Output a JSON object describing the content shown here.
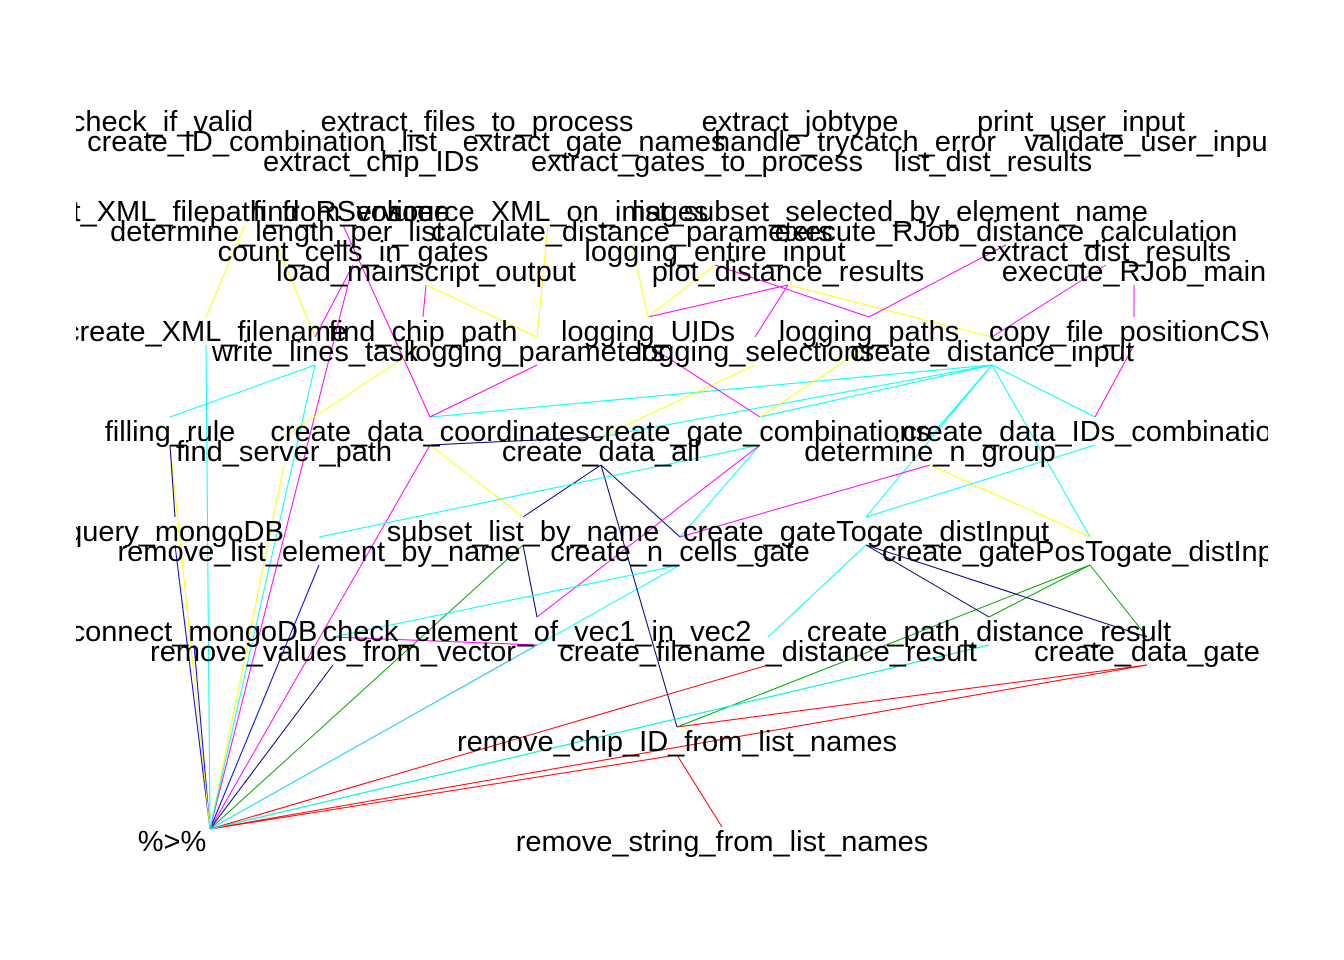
{
  "graph": {
    "nodes": [
      {
        "id": "check_if_valid",
        "label": "check_if_valid"
      },
      {
        "id": "extract_files_to_process",
        "label": "extract_files_to_process"
      },
      {
        "id": "extract_jobtype",
        "label": "extract_jobtype"
      },
      {
        "id": "print_user_input",
        "label": "print_user_input"
      },
      {
        "id": "create_ID_combination_list",
        "label": "create_ID_combination_list"
      },
      {
        "id": "extract_gate_names",
        "label": "extract_gate_names"
      },
      {
        "id": "handle_trycatch_error",
        "label": "handle_trycatch_error"
      },
      {
        "id": "validate_user_input",
        "label": "validate_user_input"
      },
      {
        "id": "extract_chip_IDs",
        "label": "extract_chip_IDs"
      },
      {
        "id": "extract_gates_to_process",
        "label": "extract_gates_to_process"
      },
      {
        "id": "list_dist_results",
        "label": "list_dist_results"
      },
      {
        "id": "get_XML_filepath_from_volume",
        "label": "get_XML_filepath_from_volume"
      },
      {
        "id": "find_RService",
        "label": "find_RService"
      },
      {
        "id": "source_XML_on_images",
        "label": "source_XML_on_images"
      },
      {
        "id": "list_subset_selected_by_element_name",
        "label": "list_subset_selected_by_element_name"
      },
      {
        "id": "determine_length_per_list",
        "label": "determine_length_per_list"
      },
      {
        "id": "calculate_distance_parameters",
        "label": "calculate_distance_parameters"
      },
      {
        "id": "execute_RJob_distance_calculation",
        "label": "execute_RJob_distance_calculation"
      },
      {
        "id": "count_cells_in_gates",
        "label": "count_cells_in_gates"
      },
      {
        "id": "logging_entire_input",
        "label": "logging_entire_input"
      },
      {
        "id": "extract_dist_results",
        "label": "extract_dist_results"
      },
      {
        "id": "load_mainscript_output",
        "label": "load_mainscript_output"
      },
      {
        "id": "plot_distance_results",
        "label": "plot_distance_results"
      },
      {
        "id": "execute_RJob_main",
        "label": "execute_RJob_main"
      },
      {
        "id": "create_XML_filename",
        "label": "create_XML_filename"
      },
      {
        "id": "find_chip_path",
        "label": "find_chip_path"
      },
      {
        "id": "logging_UIDs",
        "label": "logging_UIDs"
      },
      {
        "id": "logging_paths",
        "label": "logging_paths"
      },
      {
        "id": "copy_file_positionCSV",
        "label": "copy_file_positionCSV"
      },
      {
        "id": "write_lines_task",
        "label": "write_lines_task"
      },
      {
        "id": "logging_parameters",
        "label": "logging_parameters"
      },
      {
        "id": "logging_selections",
        "label": "logging_selections"
      },
      {
        "id": "create_distance_input",
        "label": "create_distance_input"
      },
      {
        "id": "filling_rule",
        "label": "filling_rule"
      },
      {
        "id": "create_data_coordinates",
        "label": "create_data_coordinates"
      },
      {
        "id": "create_gate_combinations",
        "label": "create_gate_combinations"
      },
      {
        "id": "create_data_IDs_combination",
        "label": "create_data_IDs_combination"
      },
      {
        "id": "find_server_path",
        "label": "find_server_path"
      },
      {
        "id": "create_data_all",
        "label": "create_data_all"
      },
      {
        "id": "determine_n_group",
        "label": "determine_n_group"
      },
      {
        "id": "query_mongoDB",
        "label": "query_mongoDB"
      },
      {
        "id": "subset_list_by_name",
        "label": "subset_list_by_name"
      },
      {
        "id": "create_gateTogate_distInput",
        "label": "create_gateTogate_distInput"
      },
      {
        "id": "remove_list_element_by_name",
        "label": "remove_list_element_by_name"
      },
      {
        "id": "create_n_cells_gate",
        "label": "create_n_cells_gate"
      },
      {
        "id": "create_gatePosTogate_distInput",
        "label": "create_gatePosTogate_distInput"
      },
      {
        "id": "connect_mongoDB",
        "label": "connect_mongoDB"
      },
      {
        "id": "check_element_of_vec1_in_vec2",
        "label": "check_element_of_vec1_in_vec2"
      },
      {
        "id": "create_path_distance_result",
        "label": "create_path_distance_result"
      },
      {
        "id": "remove_values_from_vector",
        "label": "remove_values_from_vector"
      },
      {
        "id": "create_filename_distance_result",
        "label": "create_filename_distance_result"
      },
      {
        "id": "create_data_gate",
        "label": "create_data_gate"
      },
      {
        "id": "remove_chip_ID_from_list_names",
        "label": "remove_chip_ID_from_list_names"
      },
      {
        "id": "pipe",
        "label": "%>%"
      },
      {
        "id": "remove_string_from_list_names",
        "label": "remove_string_from_list_names"
      }
    ],
    "edges": [
      {
        "from": "remove_list_element_by_name",
        "to": "pipe",
        "color": "#0000ff"
      },
      {
        "from": "query_mongoDB",
        "to": "pipe",
        "color": "#0000ff"
      },
      {
        "from": "connect_mongoDB",
        "to": "pipe",
        "color": "#0000ff"
      },
      {
        "from": "remove_values_from_vector",
        "to": "pipe",
        "color": "#000080"
      },
      {
        "from": "filling_rule",
        "to": "pipe",
        "color": "#ffff00"
      },
      {
        "from": "find_server_path",
        "to": "pipe",
        "color": "#ffff00"
      },
      {
        "from": "create_data_coordinates",
        "to": "pipe",
        "color": "#ff00ff"
      },
      {
        "from": "count_cells_in_gates",
        "to": "pipe",
        "color": "#ff00ff"
      },
      {
        "from": "create_XML_filename",
        "to": "pipe",
        "color": "#00ffff"
      },
      {
        "from": "write_lines_task",
        "to": "pipe",
        "color": "#00ffff"
      },
      {
        "from": "subset_list_by_name",
        "to": "pipe",
        "color": "#00aa00"
      },
      {
        "from": "check_element_of_vec1_in_vec2",
        "to": "pipe",
        "color": "#ff00ff"
      },
      {
        "from": "create_n_cells_gate",
        "to": "pipe",
        "color": "#00ffff"
      },
      {
        "from": "create_filename_distance_result",
        "to": "pipe",
        "color": "#ff0000"
      },
      {
        "from": "create_path_distance_result",
        "to": "pipe",
        "color": "#00aa00"
      },
      {
        "from": "create_data_gate",
        "to": "pipe",
        "color": "#ff0000"
      },
      {
        "from": "remove_chip_ID_from_list_names",
        "to": "pipe",
        "color": "#ff0000"
      },
      {
        "from": "remove_chip_ID_from_list_names",
        "to": "remove_string_from_list_names",
        "color": "#ff0000"
      },
      {
        "from": "create_data_gate",
        "to": "remove_chip_ID_from_list_names",
        "color": "#ff0000"
      },
      {
        "from": "create_gatePosTogate_distInput",
        "to": "remove_chip_ID_from_list_names",
        "color": "#00aa00"
      },
      {
        "from": "create_data_all",
        "to": "remove_chip_ID_from_list_names",
        "color": "#000080"
      },
      {
        "from": "get_XML_filepath_from_volume",
        "to": "create_XML_filename",
        "color": "#ffff00"
      },
      {
        "from": "determine_length_per_list",
        "to": "write_lines_task",
        "color": "#ffff00"
      },
      {
        "from": "find_RService",
        "to": "create_data_coordinates",
        "color": "#ff00ff"
      },
      {
        "from": "load_mainscript_output",
        "to": "find_chip_path",
        "color": "#ff00ff"
      },
      {
        "from": "load_mainscript_output",
        "to": "logging_parameters",
        "color": "#ffff00"
      },
      {
        "from": "plot_distance_results",
        "to": "logging_UIDs",
        "color": "#ff00ff"
      },
      {
        "from": "plot_distance_results",
        "to": "logging_selections",
        "color": "#ff00ff"
      },
      {
        "from": "plot_distance_results",
        "to": "create_distance_input",
        "color": "#ffff00"
      },
      {
        "from": "execute_RJob_distance_calculation",
        "to": "logging_paths",
        "color": "#ff00ff"
      },
      {
        "from": "extract_dist_results",
        "to": "create_distance_input",
        "color": "#ff00ff"
      },
      {
        "from": "execute_RJob_main",
        "to": "copy_file_positionCSV",
        "color": "#ff00ff"
      },
      {
        "from": "calculate_distance_parameters",
        "to": "logging_UIDs",
        "color": "#ffff00"
      },
      {
        "from": "logging_entire_input",
        "to": "logging_paths",
        "color": "#ff00ff"
      },
      {
        "from": "create_distance_input",
        "to": "create_data_coordinates",
        "color": "#00ffff"
      },
      {
        "from": "create_distance_input",
        "to": "create_gate_combinations",
        "color": "#00ffff"
      },
      {
        "from": "create_distance_input",
        "to": "create_data_all",
        "color": "#00ffff"
      },
      {
        "from": "create_distance_input",
        "to": "determine_n_group",
        "color": "#00ffff"
      },
      {
        "from": "create_distance_input",
        "to": "create_data_IDs_combination",
        "color": "#00ffff"
      },
      {
        "from": "create_distance_input",
        "to": "create_gateTogate_distInput",
        "color": "#00ffff"
      },
      {
        "from": "create_distance_input",
        "to": "create_gatePosTogate_distInput",
        "color": "#00ffff"
      },
      {
        "from": "copy_file_positionCSV",
        "to": "create_data_IDs_combination",
        "color": "#ff00ff"
      },
      {
        "from": "logging_selections",
        "to": "create_data_all",
        "color": "#ffff00"
      },
      {
        "from": "logging_parameters",
        "to": "create_data_coordinates",
        "color": "#ff00ff"
      },
      {
        "from": "create_data_coordinates",
        "to": "create_data_all",
        "color": "#000080"
      },
      {
        "from": "create_data_all",
        "to": "subset_list_by_name",
        "color": "#000080"
      },
      {
        "from": "create_data_all",
        "to": "create_n_cells_gate",
        "color": "#000080"
      },
      {
        "from": "create_gate_combinations",
        "to": "create_n_cells_gate",
        "color": "#00ffff"
      },
      {
        "from": "create_gate_combinations",
        "to": "check_element_of_vec1_in_vec2",
        "color": "#ff00ff"
      },
      {
        "from": "determine_n_group",
        "to": "create_n_cells_gate",
        "color": "#ff00ff"
      },
      {
        "from": "determine_n_group",
        "to": "create_gatePosTogate_distInput",
        "color": "#ffff00"
      },
      {
        "from": "create_data_IDs_combination",
        "to": "create_gateTogate_distInput",
        "color": "#00ffff"
      },
      {
        "from": "create_gateTogate_distInput",
        "to": "create_path_distance_result",
        "color": "#000080"
      },
      {
        "from": "create_gatePosTogate_distInput",
        "to": "create_data_gate",
        "color": "#00aa00"
      },
      {
        "from": "create_gatePosTogate_distInput",
        "to": "create_path_distance_result",
        "color": "#00aa00"
      },
      {
        "from": "create_gateTogate_distInput",
        "to": "create_data_gate",
        "color": "#000080"
      },
      {
        "from": "create_gateTogate_distInput",
        "to": "create_filename_distance_result",
        "color": "#00ffff"
      },
      {
        "from": "subset_list_by_name",
        "to": "check_element_of_vec1_in_vec2",
        "color": "#000080"
      },
      {
        "from": "create_n_cells_gate",
        "to": "remove_values_from_vector",
        "color": "#00ffff"
      },
      {
        "from": "filling_rule",
        "to": "query_mongoDB",
        "color": "#000080"
      },
      {
        "from": "write_lines_task",
        "to": "filling_rule",
        "color": "#00ffff"
      },
      {
        "from": "find_chip_path",
        "to": "find_server_path",
        "color": "#ffff00"
      },
      {
        "from": "logging_UIDs",
        "to": "create_gate_combinations",
        "color": "#ff00ff"
      },
      {
        "from": "logging_paths",
        "to": "create_gate_combinations",
        "color": "#ffff00"
      },
      {
        "from": "logging_entire_input",
        "to": "logging_UIDs",
        "color": "#ffff00"
      },
      {
        "from": "source_XML_on_images",
        "to": "logging_parameters",
        "color": "#ffff00"
      },
      {
        "from": "count_cells_in_gates",
        "to": "write_lines_task",
        "color": "#ff00ff"
      },
      {
        "from": "create_data_coordinates",
        "to": "subset_list_by_name",
        "color": "#ffff00"
      },
      {
        "from": "create_gate_combinations",
        "to": "remove_list_element_by_name",
        "color": "#00ffff"
      },
      {
        "from": "check_element_of_vec1_in_vec2",
        "to": "remove_values_from_vector",
        "color": "#ff00ff"
      },
      {
        "from": "create_path_distance_result",
        "to": "pipe",
        "color": "#00ffff"
      }
    ],
    "node_colors": {
      "label": "#000000",
      "background": "#ffffff"
    }
  }
}
